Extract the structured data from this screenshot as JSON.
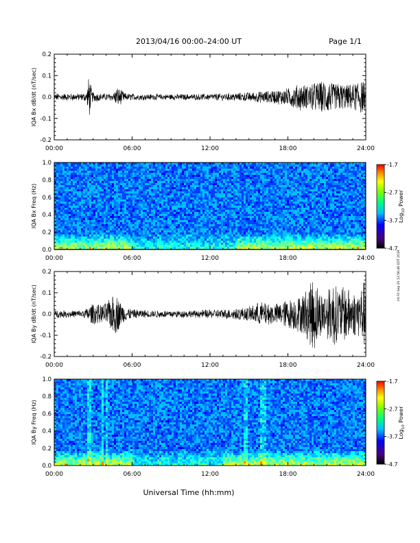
{
  "header": {
    "title": "2013/04/16  00:00–24:00 UT",
    "page": "Page 1/1"
  },
  "footer": {
    "xlabel": "Universal Time (hh:mm)",
    "side_note": "mt Fri Sep 20 13:56:46 EDT 2019"
  },
  "colorbar": {
    "ticks": [
      "-1.7",
      "-2.7",
      "-3.7",
      "-4.7"
    ],
    "label_prefix": "Log",
    "label_sub": "10",
    "label_suffix": " Power",
    "colors": [
      "#000000",
      "#4b0082",
      "#0000ff",
      "#00bfff",
      "#00ff7f",
      "#7fff00",
      "#ffff00",
      "#ff8c00",
      "#ff0000"
    ]
  },
  "chart_data": [
    {
      "type": "line",
      "ylabel": "IQA Bx dB/dt (nT/sec)",
      "x_ticks": [
        "00:00",
        "06:00",
        "12:00",
        "18:00",
        "24:00"
      ],
      "y_ticks": [
        "0.2",
        "0.1",
        "0.0",
        "-0.1",
        "-0.2"
      ],
      "ylim": [
        -0.2,
        0.2
      ],
      "xlim_hours": [
        0,
        24
      ],
      "series": [
        {
          "color": "#000000",
          "x_hours": [
            0,
            1,
            2,
            2.5,
            2.65,
            2.7,
            2.9,
            3.5,
            4.5,
            4.85,
            5,
            5.5,
            7,
            9,
            11,
            13,
            15,
            16,
            17,
            18,
            18.5,
            19,
            19.5,
            20,
            20.5,
            21,
            21.5,
            22,
            22.5,
            23,
            23.5,
            23.8,
            24
          ],
          "envelope": [
            0.015,
            0.015,
            0.015,
            0.02,
            0.09,
            0.1,
            0.025,
            0.015,
            0.015,
            0.045,
            0.04,
            0.015,
            0.012,
            0.012,
            0.012,
            0.015,
            0.02,
            0.025,
            0.03,
            0.04,
            0.05,
            0.06,
            0.055,
            0.065,
            0.07,
            0.08,
            0.06,
            0.065,
            0.055,
            0.06,
            0.07,
            0.08,
            0.03
          ]
        }
      ]
    },
    {
      "type": "heatmap",
      "ylabel": "IQA Bx Freq (Hz)",
      "x_ticks": [
        "00:00",
        "06:00",
        "12:00",
        "18:00",
        "24:00"
      ],
      "y_ticks": [
        "1.0",
        "0.8",
        "0.6",
        "0.4",
        "0.2",
        "0.0"
      ],
      "ylim": [
        0.0,
        1.0
      ],
      "zlim": [
        -4.7,
        -1.7
      ],
      "zlabel": "Log10 Power",
      "low_freq_enhancement_hours": [
        [
          0,
          6
        ],
        [
          14,
          24
        ]
      ]
    },
    {
      "type": "line",
      "ylabel": "IQA By dB/dt (nT/sec)",
      "x_ticks": [
        "00:00",
        "06:00",
        "12:00",
        "18:00",
        "24:00"
      ],
      "y_ticks": [
        "0.2",
        "0.1",
        "0.0",
        "-0.1",
        "-0.2"
      ],
      "ylim": [
        -0.2,
        0.2
      ],
      "xlim_hours": [
        0,
        24
      ],
      "series": [
        {
          "color": "#000000",
          "x_hours": [
            0,
            1,
            2,
            2.5,
            3,
            3.5,
            4,
            4.4,
            4.7,
            5.2,
            6,
            8,
            10,
            11,
            12,
            13,
            14,
            15,
            15.5,
            16,
            17,
            18,
            19,
            19.5,
            20,
            20.5,
            21,
            21.5,
            22,
            22.5,
            23,
            23.5,
            23.9,
            24
          ],
          "envelope": [
            0.015,
            0.015,
            0.015,
            0.025,
            0.05,
            0.04,
            0.05,
            0.075,
            0.1,
            0.045,
            0.02,
            0.015,
            0.015,
            0.015,
            0.02,
            0.02,
            0.025,
            0.03,
            0.05,
            0.055,
            0.045,
            0.065,
            0.085,
            0.12,
            0.18,
            0.1,
            0.11,
            0.15,
            0.12,
            0.13,
            0.1,
            0.11,
            0.16,
            0.05
          ]
        }
      ]
    },
    {
      "type": "heatmap",
      "ylabel": "IQA By Freq (Hz)",
      "x_ticks": [
        "00:00",
        "06:00",
        "12:00",
        "18:00",
        "24:00"
      ],
      "y_ticks": [
        "1.0",
        "0.8",
        "0.6",
        "0.4",
        "0.2",
        "0.0"
      ],
      "ylim": [
        0.0,
        1.0
      ],
      "zlim": [
        -4.7,
        -1.7
      ],
      "zlabel": "Log10 Power",
      "broadband_bursts_hours": [
        [
          2.6,
          2.9
        ],
        [
          3.6,
          3.8
        ],
        [
          4.0,
          4.2
        ],
        [
          14.7,
          15.0
        ],
        [
          15.9,
          16.3
        ]
      ],
      "low_freq_enhancement_hours": [
        [
          0,
          6
        ],
        [
          13,
          24
        ]
      ]
    }
  ]
}
